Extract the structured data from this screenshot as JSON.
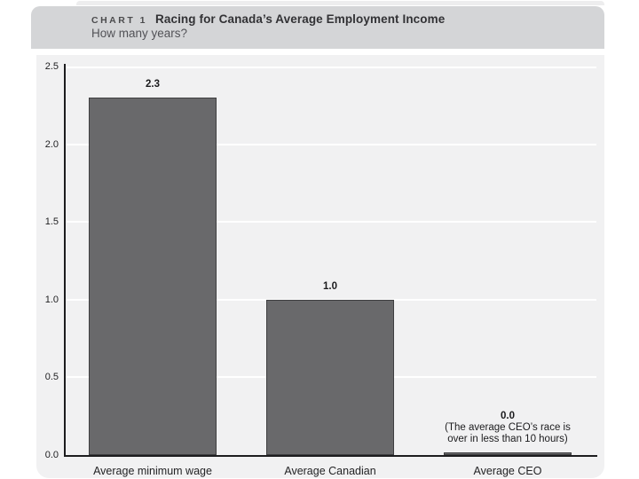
{
  "header": {
    "chart_label": "CHART 1",
    "title": "Racing for Canada’s Average Employment Income",
    "subtitle": "How many years?"
  },
  "colors": {
    "page_bg": "#ffffff",
    "header_bg": "#d4d5d7",
    "body_bg": "#f1f1f2",
    "top_strip": "#ededee",
    "gridline": "#ffffff",
    "axis": "#1d1d1f",
    "bar_fill": "#69696b",
    "bar_border": "#3f3f41"
  },
  "chart_data": {
    "type": "bar",
    "title": "CHART 1  Racing for Canada’s Average Employment Income",
    "subtitle": "How many years?",
    "xlabel": "",
    "ylabel": "",
    "categories": [
      "Average minimum wage",
      "Average Canadian",
      "Average CEO"
    ],
    "values": [
      2.3,
      1.0,
      0.0
    ],
    "value_labels": [
      "2.3",
      "1.0",
      "0.0"
    ],
    "annotations": [
      {
        "category_index": 2,
        "lines": [
          "(The average CEO’s race is",
          "over in less than 10 hours)"
        ]
      }
    ],
    "ylim": [
      0,
      2.5
    ],
    "yticks": [
      2.5,
      2.0,
      1.5,
      1.0,
      0.5,
      0.0
    ],
    "legend": false,
    "grid": "horizontal white gridlines on light gray panel"
  }
}
